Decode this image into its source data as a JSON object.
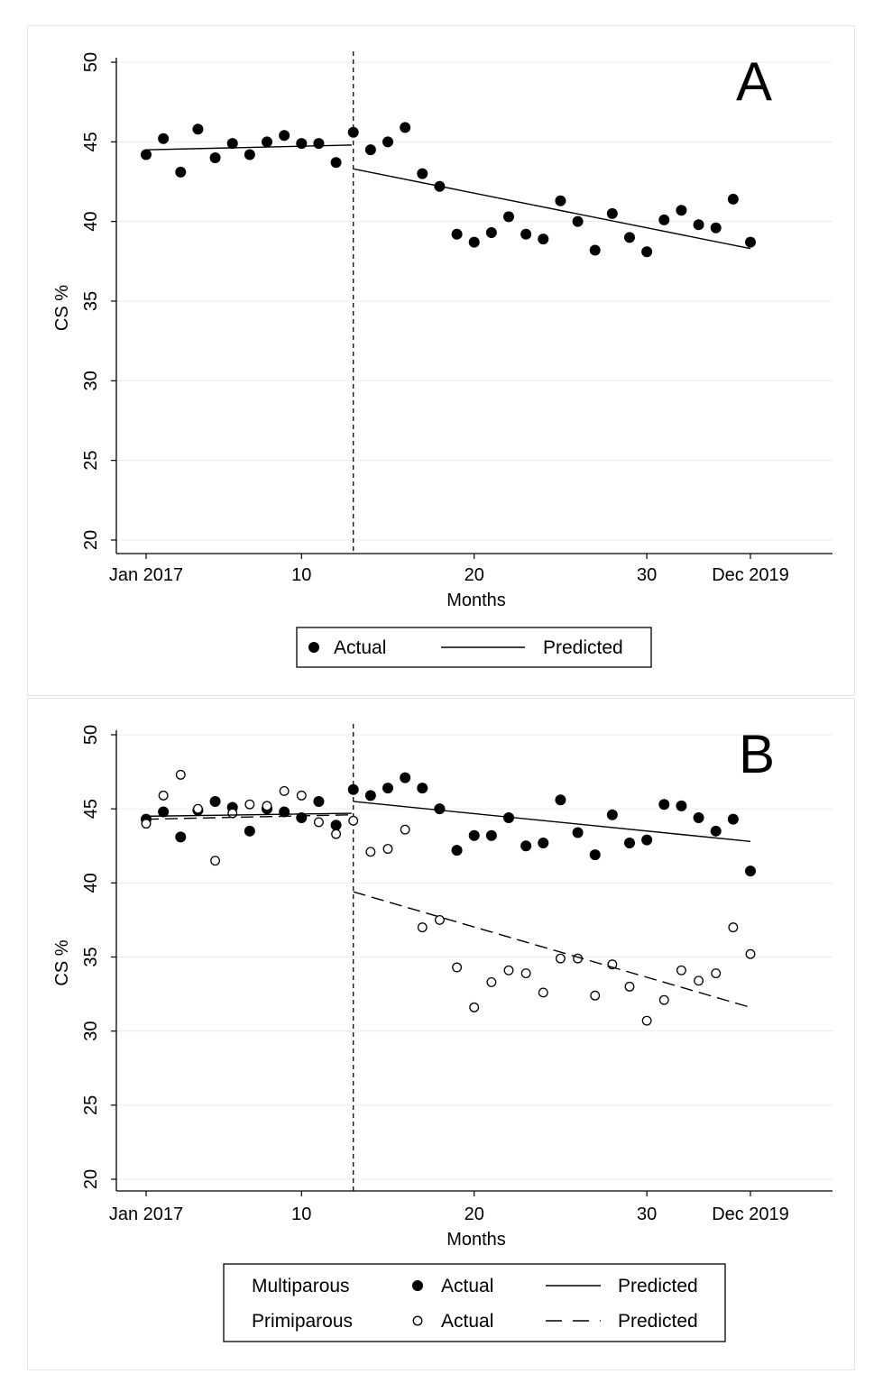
{
  "chart_data": [
    {
      "panel_label": "A",
      "type": "scatter",
      "xlabel": "Months",
      "ylabel": "CS %",
      "xlim": [
        1,
        37
      ],
      "ylim": [
        20,
        50
      ],
      "x_ticks": [
        {
          "value": 1,
          "label": "Jan 2017"
        },
        {
          "value": 10,
          "label": "10"
        },
        {
          "value": 20,
          "label": "20"
        },
        {
          "value": 30,
          "label": "30"
        },
        {
          "value": 36,
          "label": "Dec 2019"
        }
      ],
      "y_ticks": [
        {
          "value": 20,
          "label": "20"
        },
        {
          "value": 25,
          "label": "25"
        },
        {
          "value": 30,
          "label": "30"
        },
        {
          "value": 35,
          "label": "35"
        },
        {
          "value": 40,
          "label": "40"
        },
        {
          "value": 45,
          "label": "45"
        },
        {
          "value": 50,
          "label": "50"
        }
      ],
      "grid": true,
      "intervention_x": 13,
      "legend": {
        "placement": "bottom",
        "entries": [
          "Actual",
          "Predicted"
        ]
      },
      "series": [
        {
          "name": "Actual",
          "kind": "points",
          "marker": "filled",
          "x": [
            1,
            2,
            3,
            4,
            5,
            6,
            7,
            8,
            9,
            10,
            11,
            12,
            13,
            14,
            15,
            16,
            17,
            18,
            19,
            20,
            21,
            22,
            23,
            24,
            25,
            26,
            27,
            28,
            29,
            30,
            31,
            32,
            33,
            34,
            35,
            36
          ],
          "y": [
            44.2,
            45.2,
            43.1,
            45.8,
            44.0,
            44.9,
            44.2,
            45.0,
            45.4,
            44.9,
            44.9,
            43.7,
            45.6,
            44.5,
            45.0,
            45.9,
            43.0,
            42.2,
            39.2,
            38.7,
            39.3,
            40.3,
            39.2,
            38.9,
            41.3,
            40.0,
            38.2,
            40.5,
            39.0,
            38.1,
            40.1,
            40.7,
            39.8,
            39.6,
            41.4,
            38.7
          ]
        },
        {
          "name": "Predicted",
          "kind": "line",
          "dash": "solid",
          "segments": [
            {
              "x": [
                1,
                12.9
              ],
              "y": [
                44.5,
                44.8
              ]
            },
            {
              "x": [
                13,
                36
              ],
              "y": [
                43.3,
                38.3
              ]
            }
          ]
        }
      ]
    },
    {
      "panel_label": "B",
      "type": "scatter",
      "xlabel": "Months",
      "ylabel": "CS %",
      "xlim": [
        1,
        37
      ],
      "ylim": [
        20,
        50
      ],
      "x_ticks": [
        {
          "value": 1,
          "label": "Jan 2017"
        },
        {
          "value": 10,
          "label": "10"
        },
        {
          "value": 20,
          "label": "20"
        },
        {
          "value": 30,
          "label": "30"
        },
        {
          "value": 36,
          "label": "Dec 2019"
        }
      ],
      "y_ticks": [
        {
          "value": 20,
          "label": "20"
        },
        {
          "value": 25,
          "label": "25"
        },
        {
          "value": 30,
          "label": "30"
        },
        {
          "value": 35,
          "label": "35"
        },
        {
          "value": 40,
          "label": "40"
        },
        {
          "value": 45,
          "label": "45"
        },
        {
          "value": 50,
          "label": "50"
        }
      ],
      "grid": true,
      "intervention_x": 13,
      "legend": {
        "placement": "bottom",
        "rows": [
          {
            "group": "Multiparous",
            "actual": "Actual",
            "predicted": "Predicted"
          },
          {
            "group": "Primiparous",
            "actual": "Actual",
            "predicted": "Predicted"
          }
        ]
      },
      "series": [
        {
          "name": "Actual",
          "group": "Multiparous",
          "kind": "points",
          "marker": "filled",
          "x": [
            1,
            2,
            3,
            4,
            5,
            6,
            7,
            8,
            9,
            10,
            11,
            12,
            13,
            14,
            15,
            16,
            17,
            18,
            19,
            20,
            21,
            22,
            23,
            24,
            25,
            26,
            27,
            28,
            29,
            30,
            31,
            32,
            33,
            34,
            35,
            36
          ],
          "y": [
            44.3,
            44.8,
            43.1,
            44.9,
            45.5,
            45.1,
            43.5,
            45.0,
            44.8,
            44.4,
            45.5,
            43.9,
            46.3,
            45.9,
            46.4,
            47.1,
            46.4,
            45.0,
            42.2,
            43.2,
            43.2,
            44.4,
            42.5,
            42.7,
            45.6,
            43.4,
            41.9,
            44.6,
            42.7,
            42.9,
            45.3,
            45.2,
            44.4,
            43.5,
            44.3,
            40.8
          ]
        },
        {
          "name": "Actual",
          "group": "Primiparous",
          "kind": "points",
          "marker": "hollow",
          "x": [
            1,
            2,
            3,
            4,
            5,
            6,
            7,
            8,
            9,
            10,
            11,
            12,
            13,
            14,
            15,
            16,
            17,
            18,
            19,
            20,
            21,
            22,
            23,
            24,
            25,
            26,
            27,
            28,
            29,
            30,
            31,
            32,
            33,
            34,
            35,
            36
          ],
          "y": [
            44.0,
            45.9,
            47.3,
            45.0,
            41.5,
            44.7,
            45.3,
            45.2,
            46.2,
            45.9,
            44.1,
            43.3,
            44.2,
            42.1,
            42.3,
            43.6,
            37.0,
            37.5,
            34.3,
            31.6,
            33.3,
            34.1,
            33.9,
            32.6,
            34.9,
            34.9,
            32.4,
            34.5,
            33.0,
            30.7,
            32.1,
            34.1,
            33.4,
            33.9,
            37.0,
            35.2
          ]
        },
        {
          "name": "Predicted",
          "group": "Multiparous",
          "kind": "line",
          "dash": "solid",
          "segments": [
            {
              "x": [
                1,
                12.9
              ],
              "y": [
                44.5,
                44.7
              ]
            },
            {
              "x": [
                13,
                36
              ],
              "y": [
                45.5,
                42.8
              ]
            }
          ]
        },
        {
          "name": "Predicted",
          "group": "Primiparous",
          "kind": "line",
          "dash": "dashed",
          "segments": [
            {
              "x": [
                1,
                12.9
              ],
              "y": [
                44.3,
                44.6
              ]
            },
            {
              "x": [
                13,
                36
              ],
              "y": [
                39.4,
                31.6
              ]
            }
          ]
        }
      ]
    }
  ]
}
